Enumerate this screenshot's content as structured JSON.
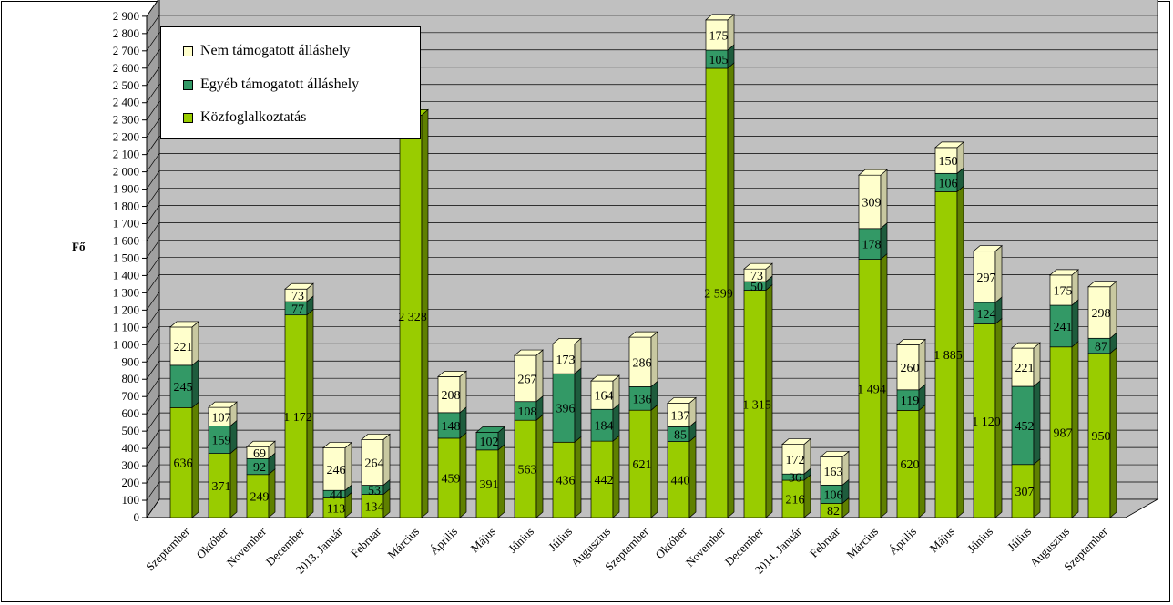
{
  "chart_data": {
    "type": "bar",
    "stacked": true,
    "three_d": true,
    "ylabel": "Fő",
    "ylim": [
      0,
      2900
    ],
    "ytick_step": 100,
    "ytick_labels": [
      "0",
      "100",
      "200",
      "300",
      "400",
      "500",
      "600",
      "700",
      "800",
      "900",
      "1 000",
      "1 100",
      "1 200",
      "1 300",
      "1 400",
      "1 500",
      "1 600",
      "1 700",
      "1 800",
      "1 900",
      "2 000",
      "2 100",
      "2 200",
      "2 300",
      "2 400",
      "2 500",
      "2 600",
      "2 700",
      "2 800",
      "2 900"
    ],
    "grid": true,
    "legend_position": "top-left",
    "categories": [
      "Szeptember",
      "Október",
      "November",
      "December",
      "2013. Január",
      "Február",
      "Március",
      "Április",
      "Május",
      "Június",
      "Július",
      "Augusztus",
      "Szeptember",
      "Október",
      "November",
      "December",
      "2014. Január",
      "Február",
      "Március",
      "Április",
      "Május",
      "Június",
      "Július",
      "Augusztus",
      "Szeptember"
    ],
    "series": [
      {
        "name": "Közfoglalkoztatás",
        "color": "#99CC00",
        "side_color": "#5F8000",
        "values": [
          636,
          371,
          249,
          1172,
          113,
          134,
          2328,
          459,
          391,
          563,
          436,
          442,
          621,
          440,
          2599,
          1315,
          216,
          82,
          1494,
          620,
          1885,
          1120,
          307,
          987,
          950
        ],
        "labels": [
          "636",
          "371",
          "249",
          "1 172",
          "113",
          "134",
          "2 328",
          "459",
          "391",
          "563",
          "436",
          "442",
          "621",
          "440",
          "2 599",
          "1 315",
          "216",
          "82",
          "1 494",
          "620",
          "1 885",
          "1 120",
          "307",
          "987",
          "950"
        ]
      },
      {
        "name": "Egyéb támogatott álláshely",
        "color": "#339966",
        "side_color": "#1E5C3D",
        "values": [
          245,
          159,
          92,
          77,
          44,
          53,
          0,
          148,
          102,
          108,
          396,
          184,
          136,
          85,
          105,
          50,
          36,
          106,
          178,
          119,
          106,
          124,
          452,
          241,
          87
        ],
        "labels": [
          "245",
          "159",
          "92",
          "77",
          "44",
          "53",
          "",
          "148",
          "102",
          "108",
          "396",
          "184",
          "136",
          "85",
          "105",
          "50",
          "36",
          "106",
          "178",
          "119",
          "106",
          "124",
          "452",
          "241",
          "87"
        ]
      },
      {
        "name": "Nem támogatott álláshely",
        "color": "#FFFFCC",
        "side_color": "#C8C8A0",
        "values": [
          221,
          107,
          69,
          73,
          246,
          264,
          0,
          208,
          0,
          267,
          173,
          164,
          286,
          137,
          175,
          73,
          172,
          163,
          309,
          260,
          150,
          297,
          221,
          175,
          298
        ],
        "labels": [
          "221",
          "107",
          "69",
          "73",
          "246",
          "264",
          "",
          "208",
          "",
          "267",
          "173",
          "164",
          "286",
          "137",
          "175",
          "73",
          "172",
          "163",
          "309",
          "260",
          "150",
          "297",
          "221",
          "175",
          "298"
        ]
      }
    ]
  }
}
